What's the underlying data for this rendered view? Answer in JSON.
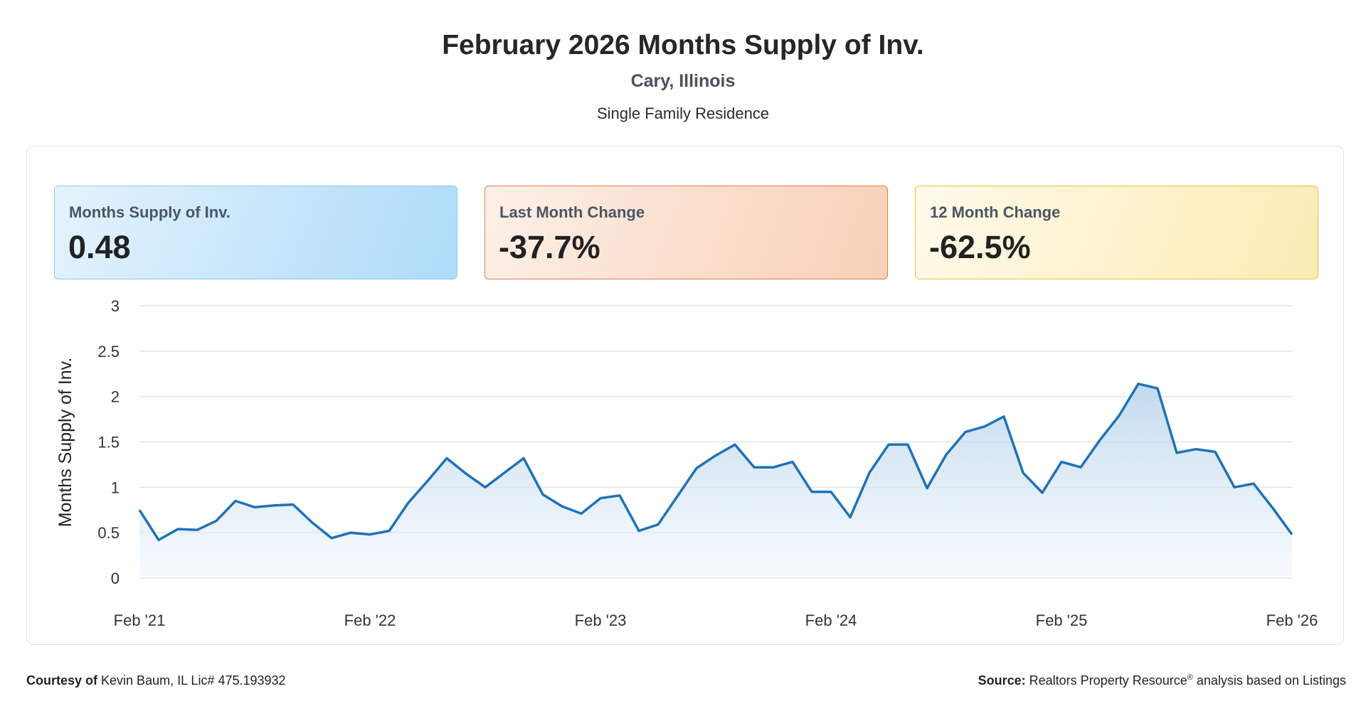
{
  "header": {
    "title": "February 2026 Months Supply of Inv.",
    "location": "Cary, Illinois",
    "property_type": "Single Family Residence"
  },
  "cards": [
    {
      "label": "Months Supply of Inv.",
      "value": "0.48"
    },
    {
      "label": "Last Month Change",
      "value": "-37.7%"
    },
    {
      "label": "12 Month Change",
      "value": "-62.5%"
    }
  ],
  "footer": {
    "courtesy_label": "Courtesy of",
    "courtesy_text": "Kevin Baum, IL Lic# 475.193932",
    "source_label": "Source:",
    "source_text_1": "Realtors Property Resource",
    "source_sup": "®",
    "source_text_2": "analysis based on Listings"
  },
  "colors": {
    "line": "#1f72b8",
    "area_top": "#bcd6ec",
    "grid": "#e2e2e2"
  },
  "chart_data": {
    "type": "area",
    "title": "",
    "xlabel": "",
    "ylabel": "Months Supply of Inv.",
    "ylim": [
      0,
      3
    ],
    "yticks": [
      0,
      0.5,
      1,
      1.5,
      2,
      2.5,
      3
    ],
    "ytick_labels": [
      "0",
      "0.5",
      "1",
      "1.5",
      "2",
      "2.5",
      "3"
    ],
    "xtick_labels": [
      "Feb '21",
      "Feb '22",
      "Feb '23",
      "Feb '24",
      "Feb '25",
      "Feb '26"
    ],
    "x": [
      "Feb '21",
      "Mar '21",
      "Apr '21",
      "May '21",
      "Jun '21",
      "Jul '21",
      "Aug '21",
      "Sep '21",
      "Oct '21",
      "Nov '21",
      "Dec '21",
      "Jan '22",
      "Feb '22",
      "Mar '22",
      "Apr '22",
      "May '22",
      "Jun '22",
      "Jul '22",
      "Aug '22",
      "Sep '22",
      "Oct '22",
      "Nov '22",
      "Dec '22",
      "Jan '23",
      "Feb '23",
      "Mar '23",
      "Apr '23",
      "May '23",
      "Jun '23",
      "Jul '23",
      "Aug '23",
      "Sep '23",
      "Oct '23",
      "Nov '23",
      "Dec '23",
      "Jan '24",
      "Feb '24",
      "Mar '24",
      "Apr '24",
      "May '24",
      "Jun '24",
      "Jul '24",
      "Aug '24",
      "Sep '24",
      "Oct '24",
      "Nov '24",
      "Dec '24",
      "Jan '25",
      "Feb '25",
      "Mar '25",
      "Apr '25",
      "May '25",
      "Jun '25",
      "Jul '25",
      "Aug '25",
      "Sep '25",
      "Oct '25",
      "Nov '25",
      "Dec '25",
      "Jan '26",
      "Feb '26"
    ],
    "series": [
      {
        "values": [
          0.75,
          0.42,
          0.54,
          0.53,
          0.63,
          0.85,
          0.78,
          0.8,
          0.81,
          0.61,
          0.44,
          0.5,
          0.48,
          0.52,
          0.83,
          1.07,
          1.32,
          1.15,
          1.0,
          1.16,
          1.32,
          0.92,
          0.79,
          0.71,
          0.88,
          0.91,
          0.52,
          0.59,
          0.9,
          1.21,
          1.35,
          1.47,
          1.22,
          1.22,
          1.28,
          0.95,
          0.95,
          0.67,
          1.16,
          1.47,
          1.47,
          0.99,
          1.36,
          1.61,
          1.67,
          1.78,
          1.16,
          0.94,
          1.28,
          1.22,
          1.52,
          1.79,
          2.14,
          2.09,
          1.38,
          1.42,
          1.39,
          1.0,
          1.04,
          0.77,
          0.48
        ]
      }
    ],
    "grid": true
  }
}
